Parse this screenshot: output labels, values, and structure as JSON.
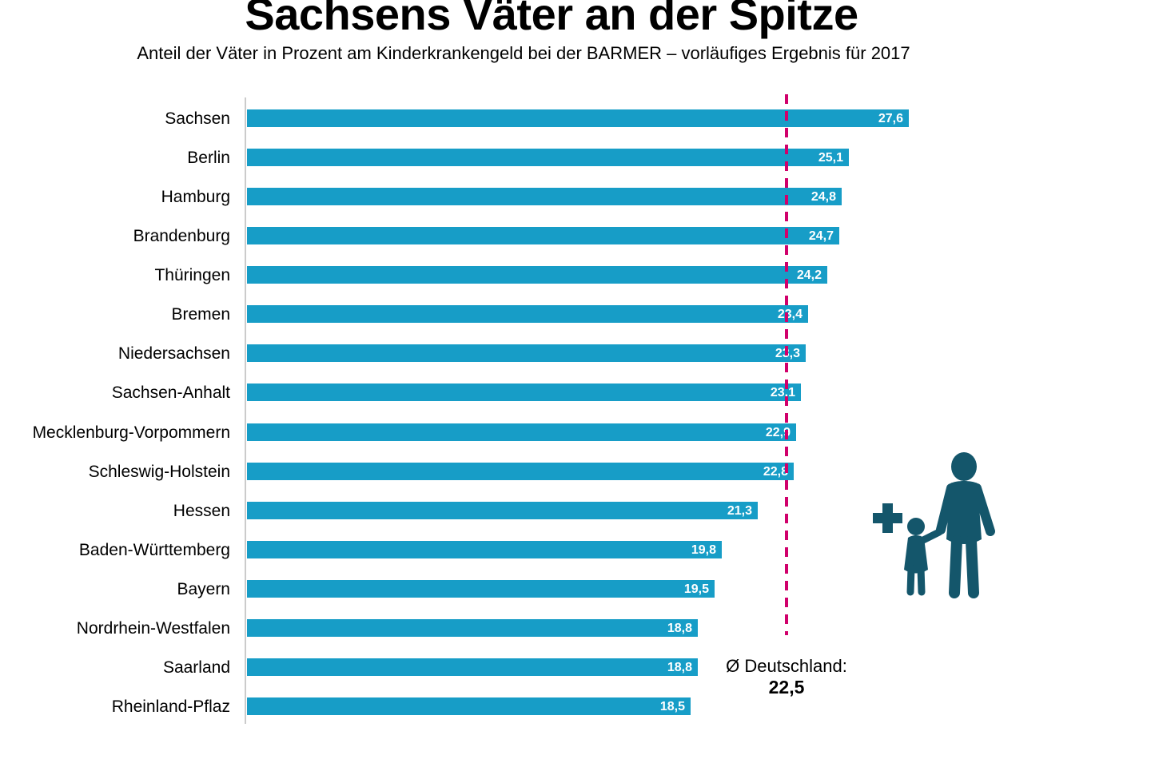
{
  "title": "Sachsens Väter an der Spitze",
  "subtitle": "Anteil der Väter in Prozent am Kinderkrankengeld bei der BARMER – vorläufiges Ergebnis für 2017",
  "colors": {
    "bar": "#179dc7",
    "avg_line": "#d0006b",
    "icon": "#14566b",
    "axis": "#cbcbcb",
    "value_label_text": "#ffffff",
    "text": "#000000"
  },
  "icon": {
    "name": "adult-child-plus-icon",
    "meaning": "plus sign beside silhouette of adult holding a child's hand"
  },
  "chart_data": {
    "type": "bar",
    "orientation": "horizontal",
    "title": "Sachsens Väter an der Spitze",
    "subtitle": "Anteil der Väter in Prozent am Kinderkrankengeld bei der BARMER – vorläufiges Ergebnis für 2017",
    "categories": [
      "Sachsen",
      "Berlin",
      "Hamburg",
      "Brandenburg",
      "Thüringen",
      "Bremen",
      "Niedersachsen",
      "Sachsen-Anhalt",
      "Mecklenburg-Vorpommern",
      "Schleswig-Holstein",
      "Hessen",
      "Baden-Württemberg",
      "Bayern",
      "Nordrhein-Westfalen",
      "Saarland",
      "Rheinland-Pflaz"
    ],
    "values": [
      27.6,
      25.1,
      24.8,
      24.7,
      24.2,
      23.4,
      23.3,
      23.1,
      22.9,
      22.8,
      21.3,
      19.8,
      19.5,
      18.8,
      18.8,
      18.5
    ],
    "value_labels": [
      "27,6",
      "25,1",
      "24,8",
      "24,7",
      "24,2",
      "23,4",
      "23,3",
      "23,1",
      "22,9",
      "22,8",
      "21,3",
      "19,8",
      "19,5",
      "18,8",
      "18,8",
      "18,5"
    ],
    "average": {
      "label": "Ø Deutschland:",
      "value": 22.5,
      "value_label": "22,5"
    },
    "xlim": [
      0,
      28
    ],
    "grid": false,
    "value_label_position": "inside-end",
    "legend": "none"
  }
}
